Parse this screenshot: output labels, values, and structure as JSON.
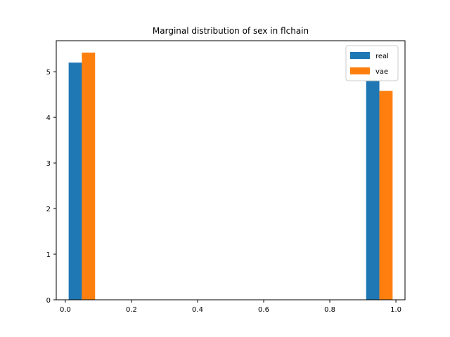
{
  "chart_data": {
    "type": "bar",
    "title": "Marginal distribution of sex in flchain",
    "xlabel": "",
    "ylabel": "",
    "xlim": [
      -0.0275,
      1.0275
    ],
    "ylim": [
      0,
      5.68
    ],
    "xticks": [
      0.0,
      0.2,
      0.4,
      0.6,
      0.8,
      1.0
    ],
    "xtick_labels": [
      "0.0",
      "0.2",
      "0.4",
      "0.6",
      "0.8",
      "1.0"
    ],
    "yticks": [
      0,
      1,
      2,
      3,
      4,
      5
    ],
    "ytick_labels": [
      "0",
      "1",
      "2",
      "3",
      "4",
      "5"
    ],
    "bar_width": 0.04,
    "series": [
      {
        "name": "real",
        "color": "#1f77b4",
        "points": [
          {
            "x": 0.03,
            "y": 5.2
          },
          {
            "x": 0.93,
            "y": 4.8
          }
        ]
      },
      {
        "name": "vae",
        "color": "#ff7f0e",
        "points": [
          {
            "x": 0.07,
            "y": 5.42
          },
          {
            "x": 0.97,
            "y": 4.58
          }
        ]
      }
    ],
    "legend": {
      "placement": "top-right"
    },
    "grid": false
  }
}
